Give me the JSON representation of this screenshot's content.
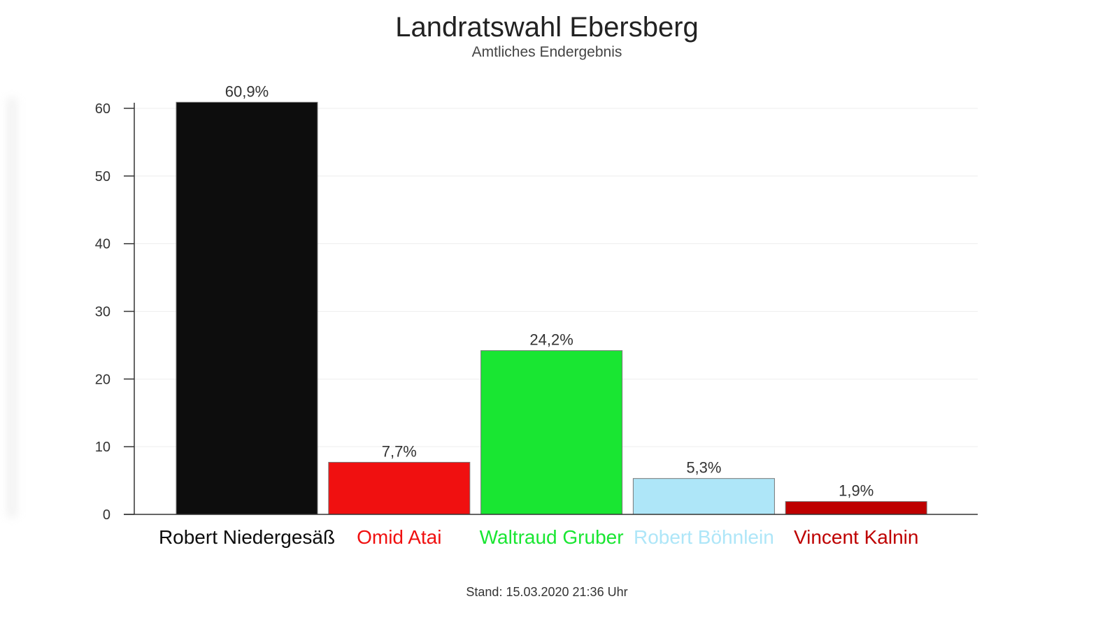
{
  "chart_data": {
    "type": "bar",
    "title": "Landratswahl Ebersberg",
    "subtitle": "Amtliches Endergebnis",
    "footer": "Stand: 15.03.2020 21:36 Uhr",
    "categories": [
      "Robert Niedergesäß",
      "Omid Atai",
      "Waltraud Gruber",
      "Robert Böhnlein",
      "Vincent Kalnin"
    ],
    "values": [
      60.9,
      7.7,
      24.2,
      5.3,
      1.9
    ],
    "data_labels": [
      "60,9%",
      "7,7%",
      "24,2%",
      "5,3%",
      "1,9%"
    ],
    "colors": [
      "#0d0d0d",
      "#f01010",
      "#19e632",
      "#aee6f8",
      "#be0000"
    ],
    "y_ticks": [
      0,
      10,
      20,
      30,
      40,
      50,
      60
    ],
    "ylim": [
      0,
      60
    ],
    "grid": true,
    "xlabel": "",
    "ylabel": ""
  }
}
